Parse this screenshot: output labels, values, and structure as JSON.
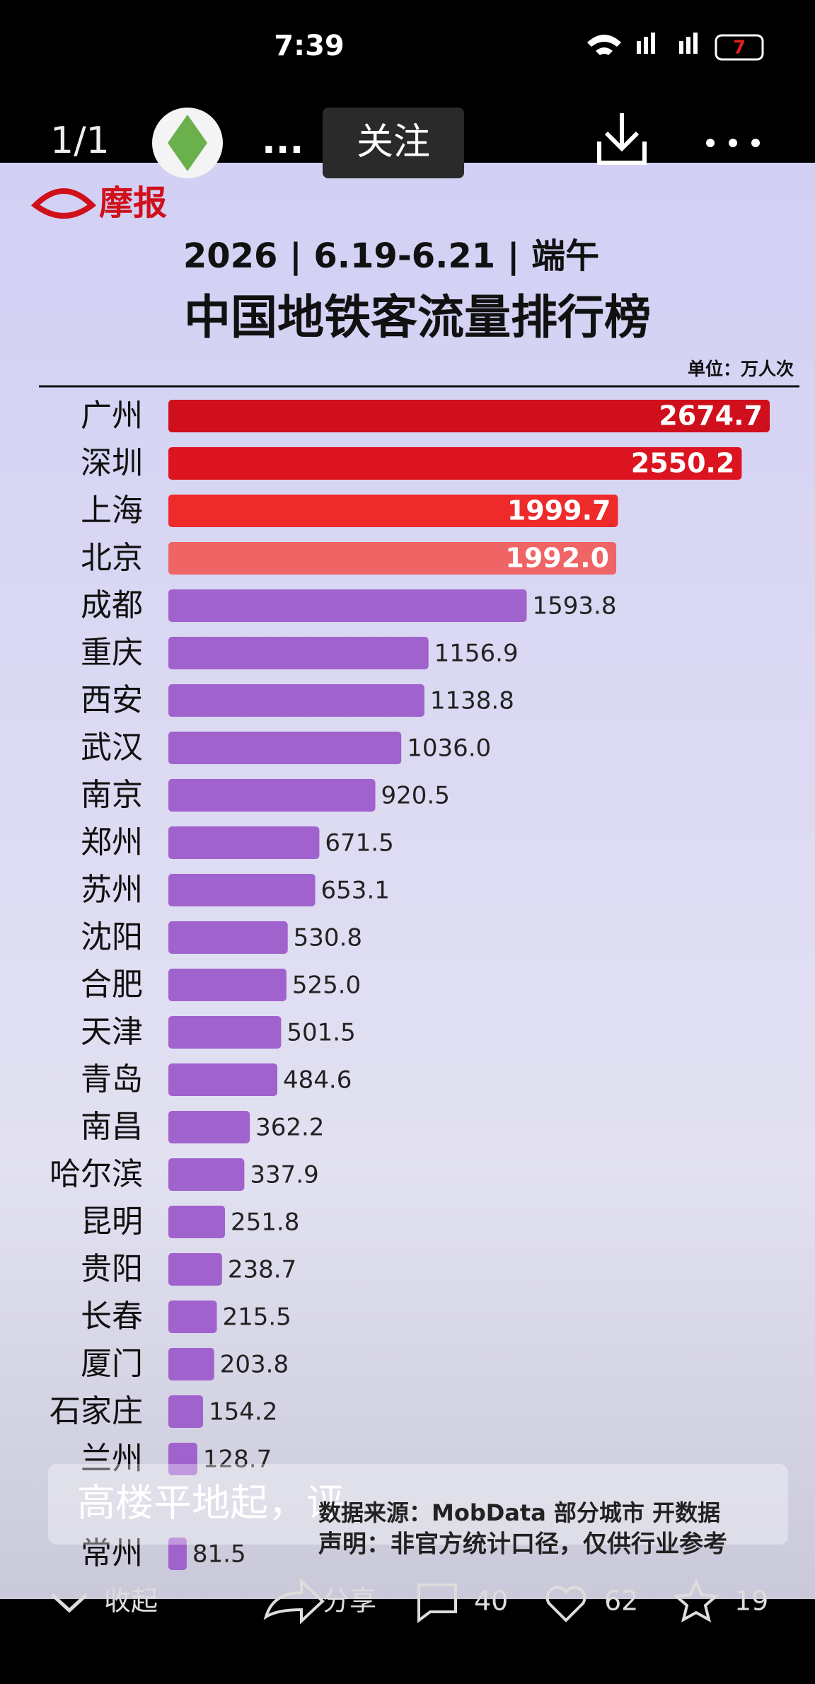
{
  "status_bar": {
    "time": "7:39",
    "battery": "7"
  },
  "header": {
    "counter": "1/1",
    "name": "...",
    "follow": "关注"
  },
  "logo": "摩报",
  "chart_data": {
    "type": "bar",
    "orientation": "horizontal",
    "title": "2026 | 6.19-6.21 | 端午",
    "subtitle": "中国地铁客流量排行榜",
    "unit": "单位：万人次",
    "categories": [
      "广州",
      "深圳",
      "上海",
      "北京",
      "成都",
      "重庆",
      "西安",
      "武汉",
      "南京",
      "郑州",
      "苏州",
      "沈阳",
      "合肥",
      "天津",
      "青岛",
      "南昌",
      "哈尔滨",
      "昆明",
      "贵阳",
      "长春",
      "厦门",
      "石家庄",
      "兰州",
      null,
      "常州"
    ],
    "values": [
      2674.7,
      2550.2,
      1999.7,
      1992.0,
      1593.8,
      1156.9,
      1138.8,
      1036.0,
      920.5,
      671.5,
      653.1,
      530.8,
      525.0,
      501.5,
      484.6,
      362.2,
      337.9,
      251.8,
      238.7,
      215.5,
      203.8,
      154.2,
      128.7,
      null,
      81.5
    ],
    "value_labels": [
      "2674.7",
      "2550.2",
      "1999.7",
      "1992.0",
      "1593.8",
      "1156.9",
      "1138.8",
      "1036.0",
      "920.5",
      "671.5",
      "653.1",
      "530.8",
      "525.0",
      "501.5",
      "484.6",
      "362.2",
      "337.9",
      "251.8",
      "238.7",
      "215.5",
      "203.8",
      "154.2",
      "128.7",
      null,
      "81.5"
    ],
    "colors": [
      "#cf0f1c",
      "#dc1420",
      "#ee2a2a",
      "#ef6464",
      "#a062cc",
      "#a062cc",
      "#a062cc",
      "#a062cc",
      "#a062cc",
      "#a062cc",
      "#a062cc",
      "#a062cc",
      "#a062cc",
      "#a062cc",
      "#a062cc",
      "#a062cc",
      "#a062cc",
      "#a062cc",
      "#a062cc",
      "#a062cc",
      "#a062cc",
      "#a062cc",
      "#a062cc",
      null,
      "#a062cc"
    ],
    "highlight": 4
  },
  "caption": "高楼平地起，评",
  "source": "数据来源：MobData 部分城市 开数据",
  "disclaimer": "声明：非官方统计口径，仅供行业参考",
  "footer": {
    "collapse": "收起",
    "share": "分享",
    "comments": "40",
    "likes": "62",
    "favorites": "19"
  }
}
